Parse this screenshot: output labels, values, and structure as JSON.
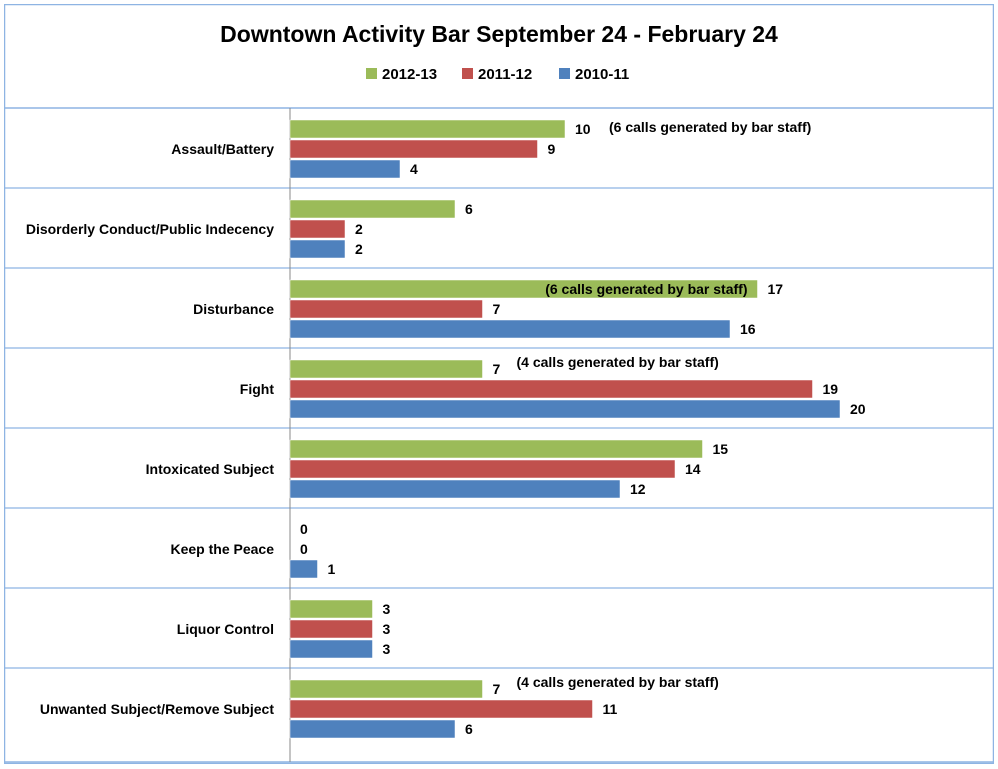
{
  "chart_data": {
    "type": "bar",
    "orientation": "horizontal",
    "title": "Downtown Activity Bar September 24 - February 24",
    "xlabel": "",
    "ylabel": "",
    "xlim": [
      0,
      20
    ],
    "grid": "horizontal-category-separators",
    "legend_position": "top-center",
    "categories": [
      "Assault/Battery",
      "Disorderly Conduct/Public Indecency",
      "Disturbance",
      "Fight",
      "Intoxicated Subject",
      "Keep the Peace",
      "Liquor Control",
      "Unwanted Subject/Remove Subject"
    ],
    "series": [
      {
        "name": "2012-13",
        "color": "#9bbb59",
        "values": [
          10,
          6,
          17,
          7,
          15,
          0,
          3,
          7
        ]
      },
      {
        "name": "2011-12",
        "color": "#c0504d",
        "values": [
          9,
          2,
          7,
          19,
          14,
          0,
          3,
          11
        ]
      },
      {
        "name": "2010-11",
        "color": "#4f81bd",
        "values": [
          4,
          2,
          16,
          20,
          12,
          1,
          3,
          6
        ]
      }
    ],
    "annotations": [
      {
        "category_index": 0,
        "series_index": 0,
        "text": "(6 calls generated by bar staff)",
        "placement": "after-label"
      },
      {
        "category_index": 2,
        "series_index": 0,
        "text": "(6 calls generated by bar staff)",
        "placement": "inside-bar-end"
      },
      {
        "category_index": 3,
        "series_index": 0,
        "text": "(4 calls generated by bar staff)",
        "placement": "after-label-raised"
      },
      {
        "category_index": 7,
        "series_index": 0,
        "text": "(4 calls generated by bar staff)",
        "placement": "after-label-raised"
      }
    ]
  }
}
